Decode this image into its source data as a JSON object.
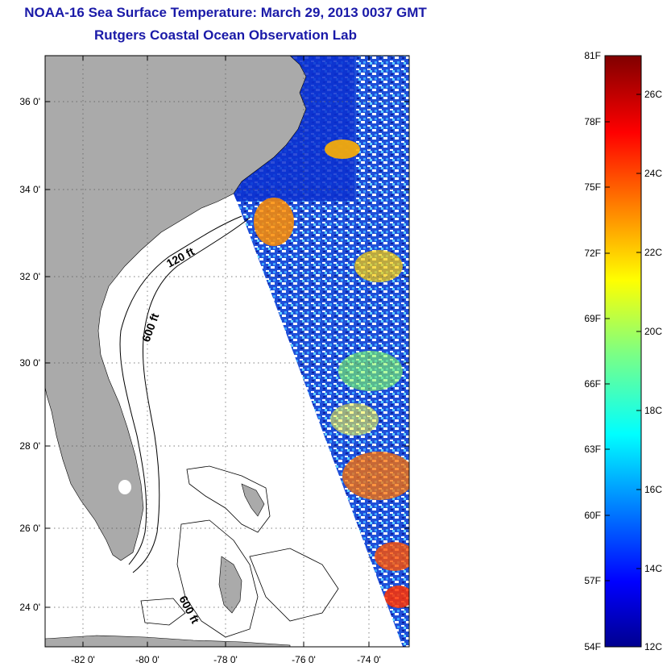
{
  "title": "NOAA-16 Sea Surface Temperature:  March 29, 2013 0037 GMT",
  "subtitle": "Rutgers Coastal Ocean Observation Lab",
  "map": {
    "lat_labels": [
      "36 0'",
      "34 0'",
      "32 0'",
      "30 0'",
      "28 0'",
      "26 0'",
      "24 0'"
    ],
    "lon_labels": [
      "-82 0'",
      "-80 0'",
      "-78 0'",
      "-76 0'",
      "-74 0'"
    ],
    "contour_labels": [
      "120 ft",
      "600 ft",
      "600 ft"
    ]
  },
  "colorbar": {
    "f_labels": [
      "81F",
      "78F",
      "75F",
      "72F",
      "69F",
      "66F",
      "63F",
      "60F",
      "57F",
      "54F"
    ],
    "c_labels": [
      "26C",
      "24C",
      "22C",
      "20C",
      "18C",
      "16C",
      "14C",
      "12C"
    ]
  },
  "colors": {
    "land": "#aaaaaa",
    "title": "#1a1aa8",
    "cold": "#00008f",
    "warm": "#8f0000"
  }
}
